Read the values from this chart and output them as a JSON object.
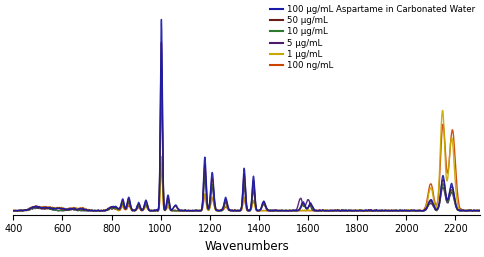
{
  "title": "",
  "xlabel": "Wavenumbers",
  "ylabel": "",
  "xlim": [
    400,
    2300
  ],
  "background_color": "#ffffff",
  "legend_labels": [
    "100 μg/mL Aspartame in Carbonated Water",
    "50 μg/mL",
    "10 μg/mL",
    "5 μg/mL",
    "1 μg/mL",
    "100 ng/mL"
  ],
  "line_colors": [
    "#1a1aaa",
    "#6b1a1a",
    "#2d7a2d",
    "#4b1a6b",
    "#c8a800",
    "#cc4400"
  ],
  "line_widths": [
    1.0,
    1.0,
    1.0,
    1.0,
    1.0,
    1.0
  ],
  "xticks": [
    400,
    600,
    800,
    1000,
    1200,
    1400,
    1600,
    1800,
    2000,
    2200
  ]
}
